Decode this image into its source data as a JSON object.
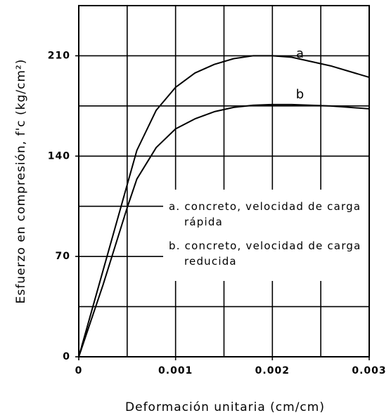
{
  "chart_data": {
    "type": "line",
    "xlabel": "Deformación unitaria (cm/cm)",
    "ylabel": "Esfuerzo en compresión, f'c (kg/cm²)",
    "xlim": [
      0,
      0.003
    ],
    "ylim": [
      0,
      245
    ],
    "xticks": [
      0,
      0.001,
      0.002,
      0.003
    ],
    "yticks": [
      0,
      70,
      140,
      210
    ],
    "x_gridlines": [
      0.0005,
      0.001,
      0.0015,
      0.002,
      0.0025
    ],
    "y_gridlines": [
      35,
      70,
      105,
      140,
      175,
      210
    ],
    "grid": true,
    "x": [
      0,
      0.00025,
      0.0005,
      0.0006,
      0.0008,
      0.001,
      0.0012,
      0.0014,
      0.0016,
      0.0018,
      0.002,
      0.0022,
      0.0024,
      0.0026,
      0.0028,
      0.003
    ],
    "series": [
      {
        "name": "a",
        "color": "#000000",
        "values": [
          0,
          60,
          120,
          144,
          172,
          188,
          198,
          204,
          208,
          210,
          210,
          209,
          206,
          203,
          199,
          195
        ]
      },
      {
        "name": "b",
        "color": "#000000",
        "values": [
          0,
          50,
          104,
          124,
          146,
          159,
          166,
          171,
          174,
          175.5,
          176,
          176,
          175.5,
          175,
          174,
          173
        ]
      }
    ],
    "legend": [
      "a. concreto, velocidad de carga rápida",
      "b. concreto, velocidad de carga reducida"
    ]
  }
}
